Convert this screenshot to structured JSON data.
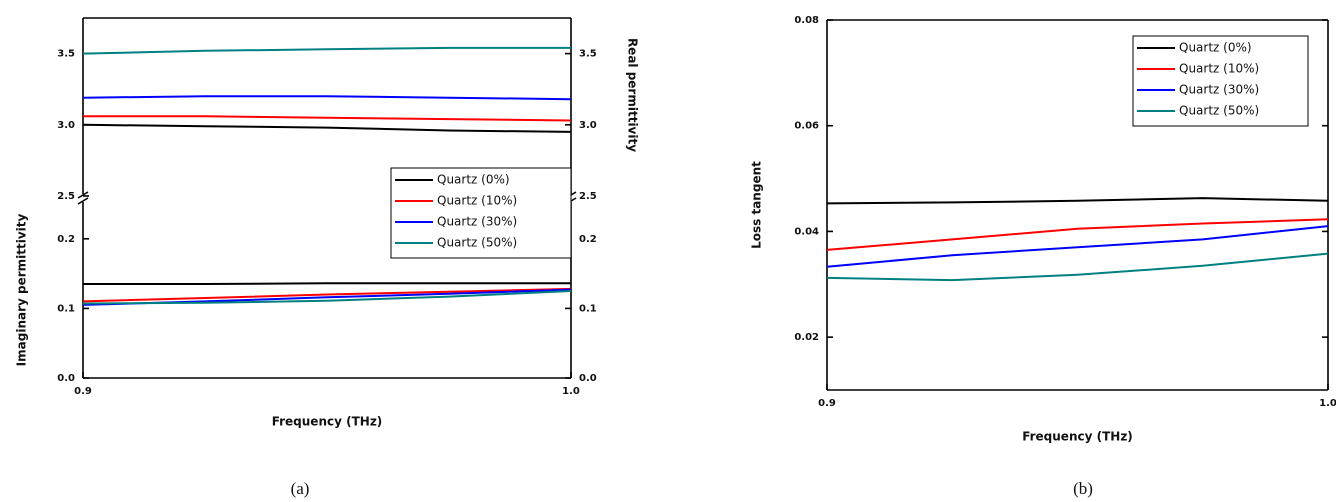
{
  "chart_data": [
    {
      "type": "line",
      "caption": "(a)",
      "x_label": "Frequency (THz)",
      "y_label": "Imaginary permittivity",
      "y2_label": "Real permittivity",
      "x": [
        0.9,
        0.925,
        0.95,
        0.975,
        1.0
      ],
      "xlim": [
        0.9,
        1.0
      ],
      "xticks": [
        0.9,
        {
          "value": 1.0,
          "label": "1.0"
        }
      ],
      "ylim": [
        0,
        0.25
      ],
      "yticks": [
        {
          "value": 0,
          "label": "0.0"
        },
        0.1,
        0.2
      ],
      "y2lim": [
        2.5,
        3.75
      ],
      "y2ticks": [
        2.5,
        {
          "value": 3.0,
          "label": "3.0"
        },
        3.5
      ],
      "broken_axis": true,
      "legend": "center right",
      "series": [
        {
          "name": "Quartz (0%)",
          "color": "#000000",
          "values": [
            0.135,
            0.135,
            0.136,
            0.136,
            0.136
          ],
          "y2_values": [
            3.0,
            2.99,
            2.98,
            2.96,
            2.95
          ]
        },
        {
          "name": "Quartz (10%)",
          "color": "#ff0000",
          "values": [
            0.11,
            0.115,
            0.12,
            0.124,
            0.128
          ],
          "y2_values": [
            3.06,
            3.06,
            3.05,
            3.04,
            3.03
          ]
        },
        {
          "name": "Quartz (30%)",
          "color": "#0000ff",
          "values": [
            0.105,
            0.11,
            0.116,
            0.121,
            0.127
          ],
          "y2_values": [
            3.19,
            3.2,
            3.2,
            3.19,
            3.18
          ]
        },
        {
          "name": "Quartz (50%)",
          "color": "#008080",
          "values": [
            0.107,
            0.108,
            0.111,
            0.117,
            0.125
          ],
          "y2_values": [
            3.5,
            3.52,
            3.53,
            3.54,
            3.54
          ]
        }
      ]
    },
    {
      "type": "line",
      "caption": "(b)",
      "x_label": "Frequency (THz)",
      "y_label": "Loss tangent",
      "x": [
        0.9,
        0.925,
        0.95,
        0.975,
        1.0
      ],
      "xlim": [
        0.9,
        1.0
      ],
      "xticks": [
        0.9,
        {
          "value": 1.0,
          "label": "1.0"
        }
      ],
      "ylim": [
        0.01,
        0.08
      ],
      "yticks": [
        0.02,
        0.04,
        0.06,
        0.08
      ],
      "legend": "upper right",
      "series": [
        {
          "name": "Quartz (0%)",
          "color": "#000000",
          "values": [
            0.0453,
            0.0455,
            0.0458,
            0.0463,
            0.0458
          ]
        },
        {
          "name": "Quartz (10%)",
          "color": "#ff0000",
          "values": [
            0.0365,
            0.0385,
            0.0405,
            0.0415,
            0.0423
          ]
        },
        {
          "name": "Quartz (30%)",
          "color": "#0000ff",
          "values": [
            0.0333,
            0.0355,
            0.037,
            0.0385,
            0.041
          ]
        },
        {
          "name": "Quartz (50%)",
          "color": "#008080",
          "values": [
            0.0312,
            0.0308,
            0.0318,
            0.0335,
            0.0358
          ]
        }
      ]
    }
  ]
}
